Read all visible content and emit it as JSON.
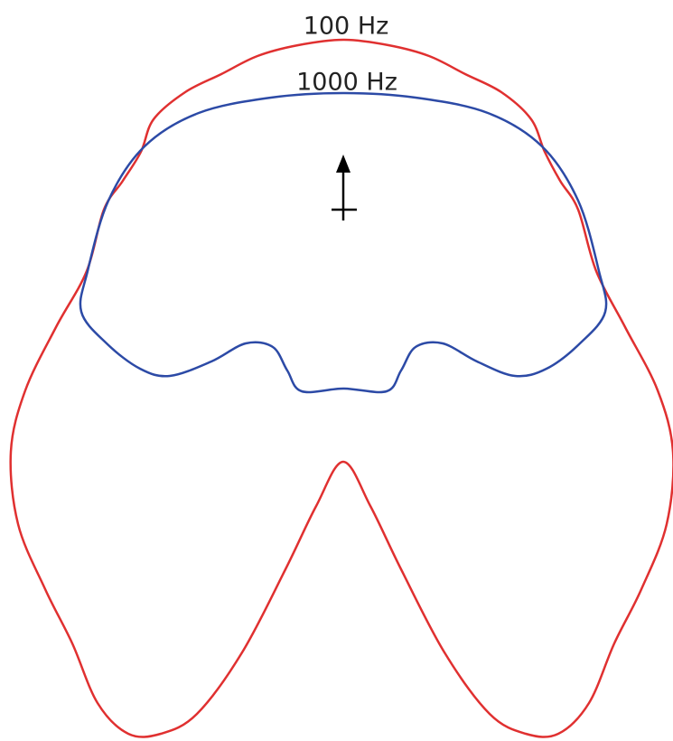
{
  "labels": {
    "outer": "100 Hz",
    "inner": "1000 Hz"
  }
}
